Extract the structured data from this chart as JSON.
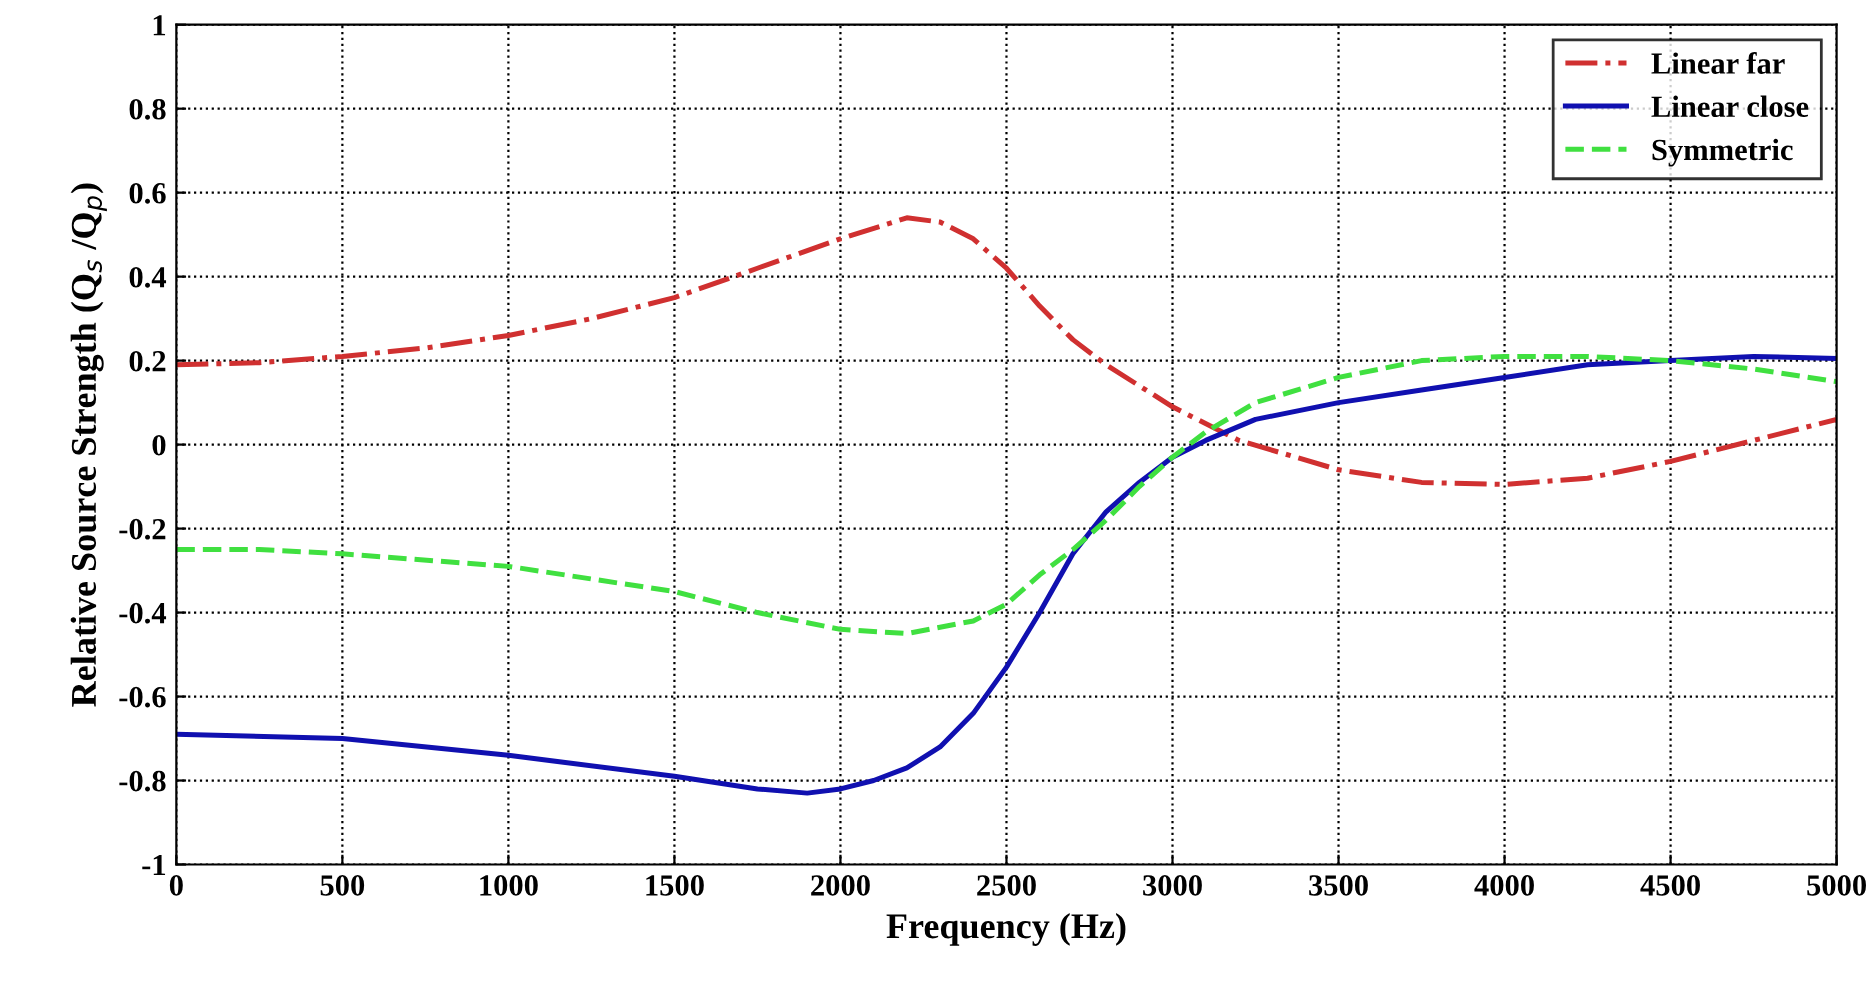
{
  "chart_data": {
    "type": "line",
    "xlabel": "Frequency (Hz)",
    "ylabel": "Relative Source Strength (Q$_{s}$ /Q$_{p}$)",
    "xlim": [
      0,
      5000
    ],
    "ylim": [
      -1,
      1
    ],
    "xticks": [
      0,
      500,
      1000,
      1500,
      2000,
      2500,
      3000,
      3500,
      4000,
      4500,
      5000
    ],
    "yticks": [
      -1,
      -0.8,
      -0.6,
      -0.4,
      -0.2,
      0,
      0.2,
      0.4,
      0.6,
      0.8,
      1
    ],
    "grid": true,
    "legend": "top right",
    "series": [
      {
        "name": "Linear far",
        "color": "#d03030",
        "line_style": "dashdot",
        "x": [
          0,
          250,
          500,
          750,
          1000,
          1250,
          1500,
          1750,
          2000,
          2200,
          2300,
          2400,
          2500,
          2600,
          2700,
          2800,
          3000,
          3200,
          3500,
          3750,
          4000,
          4250,
          4500,
          4750,
          5000
        ],
        "values": [
          0.19,
          0.195,
          0.21,
          0.23,
          0.26,
          0.3,
          0.35,
          0.42,
          0.49,
          0.54,
          0.53,
          0.49,
          0.42,
          0.33,
          0.25,
          0.19,
          0.09,
          0.01,
          -0.06,
          -0.09,
          -0.095,
          -0.08,
          -0.04,
          0.01,
          0.06
        ]
      },
      {
        "name": "Linear close",
        "color": "#1010b0",
        "line_style": "solid",
        "x": [
          0,
          500,
          1000,
          1500,
          1750,
          1900,
          2000,
          2100,
          2200,
          2300,
          2400,
          2500,
          2600,
          2700,
          2800,
          2900,
          3000,
          3100,
          3250,
          3500,
          3750,
          4000,
          4250,
          4500,
          4750,
          5000
        ],
        "values": [
          -0.69,
          -0.7,
          -0.74,
          -0.79,
          -0.82,
          -0.83,
          -0.82,
          -0.8,
          -0.77,
          -0.72,
          -0.64,
          -0.53,
          -0.4,
          -0.26,
          -0.16,
          -0.09,
          -0.03,
          0.01,
          0.06,
          0.1,
          0.13,
          0.16,
          0.19,
          0.2,
          0.21,
          0.205
        ]
      },
      {
        "name": "Symmetric",
        "color": "#40e040",
        "line_style": "dashed",
        "x": [
          0,
          250,
          500,
          1000,
          1500,
          1750,
          2000,
          2200,
          2400,
          2500,
          2600,
          2700,
          2800,
          2900,
          3000,
          3100,
          3250,
          3500,
          3750,
          4000,
          4250,
          4500,
          4750,
          5000
        ],
        "values": [
          -0.25,
          -0.25,
          -0.26,
          -0.29,
          -0.35,
          -0.4,
          -0.44,
          -0.45,
          -0.42,
          -0.38,
          -0.31,
          -0.25,
          -0.18,
          -0.1,
          -0.03,
          0.03,
          0.1,
          0.16,
          0.2,
          0.21,
          0.21,
          0.2,
          0.18,
          0.15
        ]
      }
    ]
  }
}
